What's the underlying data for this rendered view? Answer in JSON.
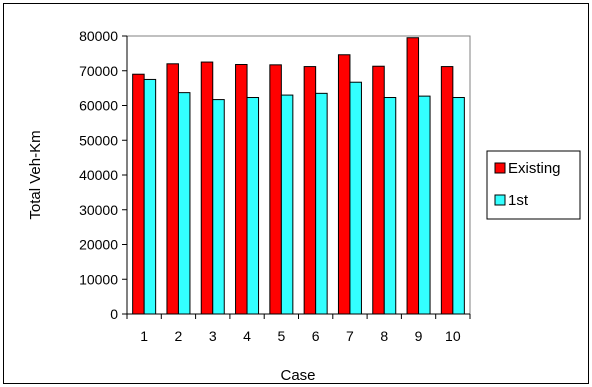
{
  "chart_data": {
    "type": "bar",
    "categories": [
      "1",
      "2",
      "3",
      "4",
      "5",
      "6",
      "7",
      "8",
      "9",
      "10"
    ],
    "series": [
      {
        "name": "Existing",
        "color": "#ff0000",
        "values": [
          69000,
          72000,
          72500,
          71800,
          71700,
          71200,
          74600,
          71300,
          79500,
          71200
        ]
      },
      {
        "name": "1st",
        "color": "#33ffff",
        "values": [
          67500,
          63700,
          61700,
          62300,
          63000,
          63500,
          66700,
          62300,
          62700,
          62300
        ]
      }
    ],
    "xlabel": "Case",
    "ylabel": "Total Veh-Km",
    "ylim": [
      0,
      80000
    ],
    "yticks": [
      0,
      10000,
      20000,
      30000,
      40000,
      50000,
      60000,
      70000,
      80000
    ],
    "grid": false,
    "legend_position": "right"
  }
}
